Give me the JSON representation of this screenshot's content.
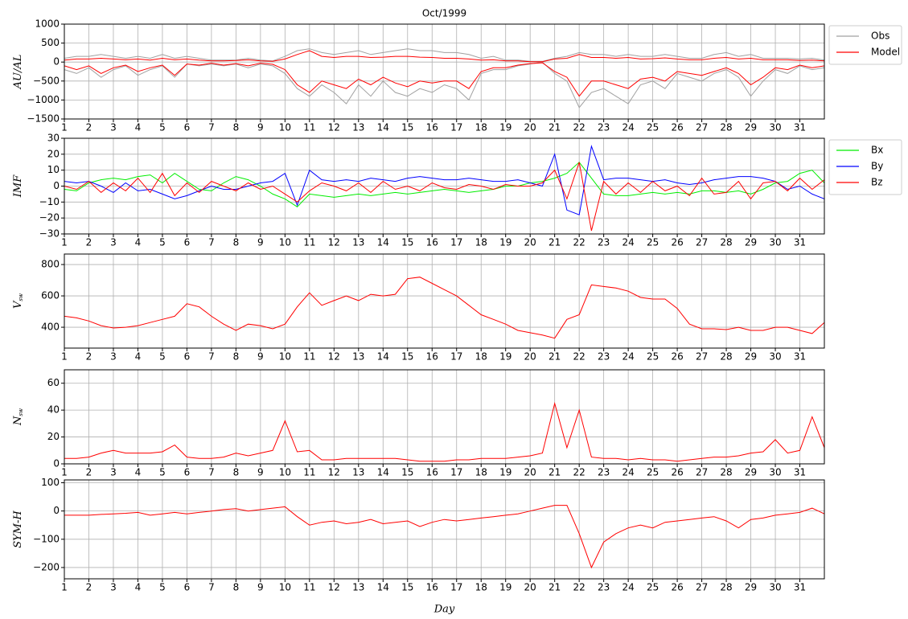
{
  "chart_data": [
    {
      "type": "line",
      "title": "Oct/1999",
      "ylabel": "AU/AL",
      "legend": "outside right",
      "grid": true,
      "x": [
        1,
        1.5,
        2,
        2.5,
        3,
        3.5,
        4,
        4.5,
        5,
        5.5,
        6,
        6.5,
        7,
        7.5,
        8,
        8.5,
        9,
        9.5,
        10,
        10.5,
        11,
        11.5,
        12,
        12.5,
        13,
        13.5,
        14,
        14.5,
        15,
        15.5,
        16,
        16.5,
        17,
        17.5,
        18,
        18.5,
        19,
        19.5,
        20,
        20.5,
        21,
        21.5,
        22,
        22.5,
        23,
        23.5,
        24,
        24.5,
        25,
        25.5,
        26,
        26.5,
        27,
        27.5,
        28,
        28.5,
        29,
        29.5,
        30,
        30.5,
        31,
        31.5,
        32
      ],
      "xlim": [
        1,
        32
      ],
      "xticks": [
        1,
        2,
        3,
        4,
        5,
        6,
        7,
        8,
        9,
        10,
        11,
        12,
        13,
        14,
        15,
        16,
        17,
        18,
        19,
        20,
        21,
        22,
        23,
        24,
        25,
        26,
        27,
        28,
        29,
        30,
        31
      ],
      "ylim": [
        -1500,
        1000
      ],
      "yticks": [
        1000,
        500,
        0,
        {
          "value": -500,
          "label": "−500"
        },
        {
          "value": -1000,
          "label": "−1000"
        },
        {
          "value": -1500,
          "label": "−1500"
        }
      ],
      "series": [
        {
          "name": "Obs",
          "color": "#a0a0a0",
          "values": [
            -200,
            -300,
            -150,
            -400,
            -200,
            -100,
            -350,
            -200,
            -100,
            -400,
            -50,
            -100,
            -50,
            -100,
            -50,
            -150,
            -50,
            -100,
            -300,
            -700,
            -900,
            -600,
            -800,
            -1100,
            -600,
            -900,
            -500,
            -800,
            -900,
            -700,
            -800,
            -600,
            -700,
            -1000,
            -300,
            -200,
            -200,
            -100,
            -50,
            0,
            -300,
            -500,
            -1200,
            -800,
            -700,
            -900,
            -1100,
            -600,
            -500,
            -700,
            -300,
            -400,
            -500,
            -300,
            -200,
            -400,
            -900,
            -500,
            -200,
            -300,
            -100,
            -200,
            -150
          ]
        },
        {
          "color": "#a0a0a0",
          "values": [
            100,
            150,
            150,
            200,
            150,
            100,
            150,
            100,
            200,
            100,
            150,
            100,
            50,
            50,
            50,
            100,
            50,
            30,
            150,
            300,
            350,
            250,
            200,
            250,
            300,
            200,
            250,
            300,
            350,
            300,
            300,
            250,
            250,
            200,
            100,
            150,
            50,
            50,
            20,
            20,
            100,
            150,
            250,
            200,
            200,
            150,
            200,
            150,
            150,
            200,
            150,
            100,
            100,
            200,
            250,
            150,
            200,
            100,
            100,
            100,
            80,
            100,
            50
          ]
        },
        {
          "name": "Model",
          "color": "#ff0000",
          "values": [
            -100,
            -200,
            -100,
            -300,
            -150,
            -80,
            -250,
            -150,
            -80,
            -350,
            -50,
            -80,
            -30,
            -80,
            -40,
            -100,
            -30,
            -60,
            -200,
            -600,
            -800,
            -500,
            -600,
            -700,
            -450,
            -600,
            -400,
            -550,
            -650,
            -500,
            -550,
            -500,
            -500,
            -700,
            -250,
            -150,
            -150,
            -80,
            -40,
            -20,
            -250,
            -400,
            -900,
            -500,
            -500,
            -600,
            -700,
            -450,
            -400,
            -500,
            -250,
            -300,
            -350,
            -250,
            -150,
            -300,
            -600,
            -400,
            -150,
            -200,
            -80,
            -150,
            -100
          ]
        },
        {
          "color": "#ff0000",
          "values": [
            50,
            80,
            80,
            100,
            80,
            60,
            80,
            50,
            100,
            60,
            80,
            50,
            30,
            30,
            40,
            60,
            30,
            20,
            80,
            200,
            300,
            150,
            120,
            150,
            150,
            120,
            130,
            150,
            150,
            130,
            120,
            100,
            100,
            80,
            50,
            60,
            30,
            30,
            10,
            10,
            80,
            100,
            200,
            120,
            120,
            100,
            120,
            80,
            90,
            110,
            80,
            60,
            60,
            100,
            120,
            80,
            100,
            60,
            60,
            60,
            40,
            50,
            30
          ]
        }
      ]
    },
    {
      "type": "line",
      "ylabel": "IMF",
      "legend": "outside right",
      "grid": true,
      "x": [
        1,
        1.5,
        2,
        2.5,
        3,
        3.5,
        4,
        4.5,
        5,
        5.5,
        6,
        6.5,
        7,
        7.5,
        8,
        8.5,
        9,
        9.5,
        10,
        10.5,
        11,
        11.5,
        12,
        12.5,
        13,
        13.5,
        14,
        14.5,
        15,
        15.5,
        16,
        16.5,
        17,
        17.5,
        18,
        18.5,
        19,
        19.5,
        20,
        20.5,
        21,
        21.5,
        22,
        22.5,
        23,
        23.5,
        24,
        24.5,
        25,
        25.5,
        26,
        26.5,
        27,
        27.5,
        28,
        28.5,
        29,
        29.5,
        30,
        30.5,
        31,
        31.5,
        32
      ],
      "xlim": [
        1,
        32
      ],
      "xticks": [
        1,
        2,
        3,
        4,
        5,
        6,
        7,
        8,
        9,
        10,
        11,
        12,
        13,
        14,
        15,
        16,
        17,
        18,
        19,
        20,
        21,
        22,
        23,
        24,
        25,
        26,
        27,
        28,
        29,
        30,
        31
      ],
      "ylim": [
        -30,
        30
      ],
      "yticks": [
        30,
        20,
        10,
        0,
        {
          "value": -10,
          "label": "−10"
        },
        {
          "value": -20,
          "label": "−20"
        },
        {
          "value": -30,
          "label": "−30"
        }
      ],
      "series": [
        {
          "name": "Bx",
          "color": "#00ee00",
          "values": [
            -2,
            -3,
            2,
            4,
            5,
            4,
            6,
            7,
            2,
            8,
            3,
            -2,
            -3,
            2,
            6,
            4,
            0,
            -5,
            -8,
            -13,
            -5,
            -6,
            -7,
            -6,
            -5,
            -6,
            -5,
            -4,
            -5,
            -4,
            -3,
            -2,
            -3,
            -4,
            -3,
            -2,
            0,
            0,
            2,
            3,
            5,
            8,
            15,
            5,
            -5,
            -6,
            -6,
            -5,
            -4,
            -5,
            -4,
            -5,
            -3,
            -3,
            -4,
            -3,
            -5,
            -2,
            2,
            3,
            8,
            10,
            2
          ]
        },
        {
          "name": "By",
          "color": "#0000ff",
          "values": [
            3,
            2,
            3,
            0,
            -4,
            2,
            -3,
            -2,
            -5,
            -8,
            -6,
            -3,
            0,
            -2,
            -2,
            0,
            2,
            3,
            8,
            -12,
            10,
            4,
            3,
            4,
            3,
            5,
            4,
            3,
            5,
            6,
            5,
            4,
            4,
            5,
            4,
            3,
            3,
            4,
            2,
            0,
            20,
            -15,
            -18,
            25,
            4,
            5,
            5,
            4,
            3,
            4,
            2,
            1,
            2,
            4,
            5,
            6,
            6,
            5,
            3,
            -2,
            0,
            -5,
            -8
          ]
        },
        {
          "name": "Bz",
          "color": "#ff0000",
          "values": [
            0,
            -2,
            3,
            -4,
            2,
            -3,
            5,
            -4,
            8,
            -6,
            2,
            -4,
            3,
            0,
            -3,
            2,
            -2,
            0,
            -5,
            -10,
            -3,
            2,
            0,
            -3,
            2,
            -4,
            3,
            -2,
            0,
            -3,
            2,
            -1,
            -2,
            1,
            0,
            -2,
            1,
            0,
            0,
            2,
            10,
            -8,
            15,
            -28,
            3,
            -5,
            2,
            -4,
            3,
            -3,
            0,
            -6,
            5,
            -5,
            -4,
            3,
            -8,
            2,
            3,
            -3,
            5,
            -2,
            4
          ]
        }
      ]
    },
    {
      "type": "line",
      "ylabel": "V",
      "ylabel_sub": "sw",
      "grid": true,
      "x": [
        1,
        1.5,
        2,
        2.5,
        3,
        3.5,
        4,
        4.5,
        5,
        5.5,
        6,
        6.5,
        7,
        7.5,
        8,
        8.5,
        9,
        9.5,
        10,
        10.5,
        11,
        11.5,
        12,
        12.5,
        13,
        13.5,
        14,
        14.5,
        15,
        15.5,
        16,
        16.5,
        17,
        17.5,
        18,
        18.5,
        19,
        19.5,
        20,
        20.5,
        21,
        21.5,
        22,
        22.5,
        23,
        23.5,
        24,
        24.5,
        25,
        25.5,
        26,
        26.5,
        27,
        27.5,
        28,
        28.5,
        29,
        29.5,
        30,
        30.5,
        31,
        31.5,
        32
      ],
      "xlim": [
        1,
        32
      ],
      "xticks": [
        1,
        2,
        3,
        4,
        5,
        6,
        7,
        8,
        9,
        10,
        11,
        12,
        13,
        14,
        15,
        16,
        17,
        18,
        19,
        20,
        21,
        22,
        23,
        24,
        25,
        26,
        27,
        28,
        29,
        30,
        31
      ],
      "ylim": [
        267,
        867
      ],
      "yticks": [
        400,
        600,
        800
      ],
      "series": [
        {
          "color": "#ff0000",
          "values": [
            470,
            460,
            440,
            410,
            395,
            400,
            410,
            430,
            450,
            470,
            550,
            530,
            470,
            420,
            380,
            420,
            410,
            390,
            420,
            530,
            620,
            540,
            570,
            600,
            570,
            610,
            600,
            610,
            710,
            720,
            680,
            640,
            600,
            540,
            480,
            450,
            420,
            380,
            365,
            350,
            330,
            450,
            480,
            670,
            660,
            650,
            630,
            590,
            580,
            580,
            520,
            420,
            390,
            390,
            385,
            400,
            380,
            380,
            400,
            400,
            380,
            360,
            430
          ]
        }
      ]
    },
    {
      "type": "line",
      "ylabel": "N",
      "ylabel_sub": "sw",
      "grid": true,
      "x": [
        1,
        1.5,
        2,
        2.5,
        3,
        3.5,
        4,
        4.5,
        5,
        5.5,
        6,
        6.5,
        7,
        7.5,
        8,
        8.5,
        9,
        9.5,
        10,
        10.5,
        11,
        11.5,
        12,
        12.5,
        13,
        13.5,
        14,
        14.5,
        15,
        15.5,
        16,
        16.5,
        17,
        17.5,
        18,
        18.5,
        19,
        19.5,
        20,
        20.5,
        21,
        21.5,
        22,
        22.5,
        23,
        23.5,
        24,
        24.5,
        25,
        25.5,
        26,
        26.5,
        27,
        27.5,
        28,
        28.5,
        29,
        29.5,
        30,
        30.5,
        31,
        31.5,
        32
      ],
      "xlim": [
        1,
        32
      ],
      "xticks": [
        1,
        2,
        3,
        4,
        5,
        6,
        7,
        8,
        9,
        10,
        11,
        12,
        13,
        14,
        15,
        16,
        17,
        18,
        19,
        20,
        21,
        22,
        23,
        24,
        25,
        26,
        27,
        28,
        29,
        30,
        31
      ],
      "ylim": [
        0,
        70
      ],
      "yticks": [
        0,
        20,
        40,
        60
      ],
      "series": [
        {
          "color": "#ff0000",
          "values": [
            4,
            4,
            5,
            8,
            10,
            8,
            8,
            8,
            9,
            14,
            5,
            4,
            4,
            5,
            8,
            6,
            8,
            10,
            32,
            9,
            10,
            3,
            3,
            4,
            4,
            4,
            4,
            4,
            3,
            2,
            2,
            2,
            3,
            3,
            4,
            4,
            4,
            5,
            6,
            8,
            45,
            12,
            40,
            5,
            4,
            4,
            3,
            4,
            3,
            3,
            2,
            3,
            4,
            5,
            5,
            6,
            8,
            9,
            18,
            8,
            10,
            35,
            12
          ]
        }
      ]
    },
    {
      "type": "line",
      "ylabel": "SYM-H",
      "xlabel": "Day",
      "grid": true,
      "x": [
        1,
        1.5,
        2,
        2.5,
        3,
        3.5,
        4,
        4.5,
        5,
        5.5,
        6,
        6.5,
        7,
        7.5,
        8,
        8.5,
        9,
        9.5,
        10,
        10.5,
        11,
        11.5,
        12,
        12.5,
        13,
        13.5,
        14,
        14.5,
        15,
        15.5,
        16,
        16.5,
        17,
        17.5,
        18,
        18.5,
        19,
        19.5,
        20,
        20.5,
        21,
        21.5,
        22,
        22.5,
        23,
        23.5,
        24,
        24.5,
        25,
        25.5,
        26,
        26.5,
        27,
        27.5,
        28,
        28.5,
        29,
        29.5,
        30,
        30.5,
        31,
        31.5,
        32
      ],
      "xlim": [
        1,
        32
      ],
      "xticks": [
        1,
        2,
        3,
        4,
        5,
        6,
        7,
        8,
        9,
        10,
        11,
        12,
        13,
        14,
        15,
        16,
        17,
        18,
        19,
        20,
        21,
        22,
        23,
        24,
        25,
        26,
        27,
        28,
        29,
        30,
        31
      ],
      "ylim": [
        -240,
        110
      ],
      "yticks": [
        100,
        0,
        {
          "value": -100,
          "label": "−100"
        },
        {
          "value": -200,
          "label": "−200"
        }
      ],
      "series": [
        {
          "color": "#ff0000",
          "values": [
            -15,
            -15,
            -15,
            -12,
            -10,
            -8,
            -5,
            -15,
            -10,
            -5,
            -10,
            -5,
            0,
            5,
            8,
            0,
            5,
            10,
            15,
            -20,
            -50,
            -40,
            -35,
            -45,
            -40,
            -30,
            -45,
            -40,
            -35,
            -55,
            -40,
            -30,
            -35,
            -30,
            -25,
            -20,
            -15,
            -10,
            0,
            10,
            20,
            20,
            -80,
            -200,
            -110,
            -80,
            -60,
            -50,
            -60,
            -40,
            -35,
            -30,
            -25,
            -20,
            -35,
            -60,
            -30,
            -25,
            -15,
            -10,
            -5,
            10,
            -10
          ]
        }
      ]
    }
  ]
}
